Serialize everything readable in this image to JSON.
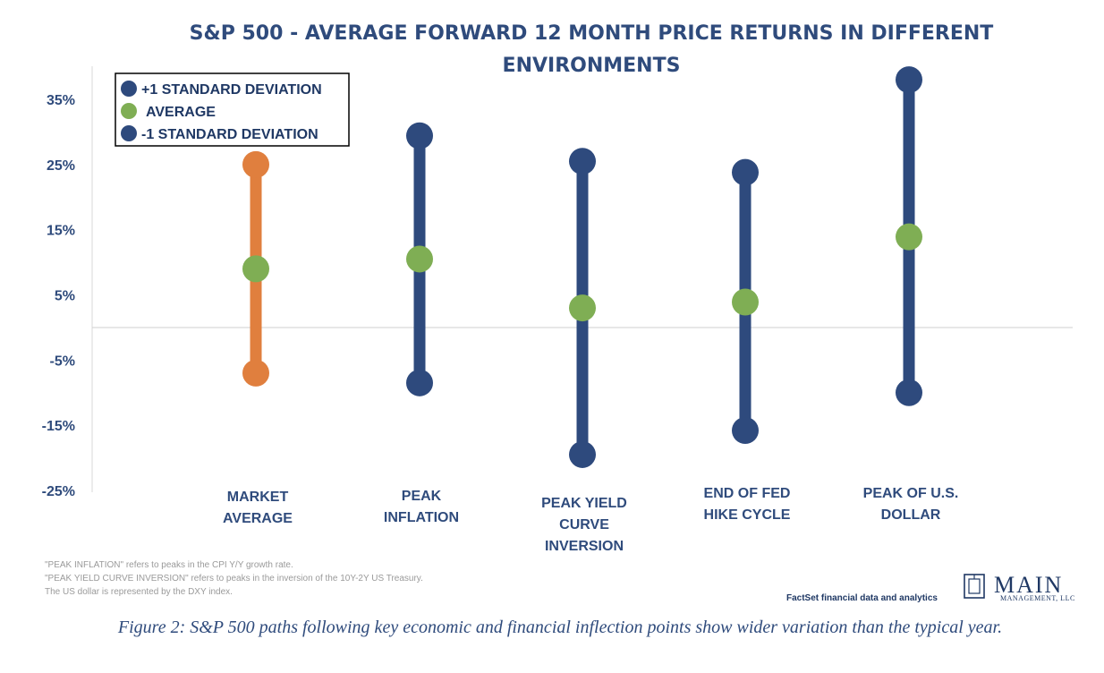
{
  "chart_data": {
    "type": "range",
    "title": [
      "S&P 500 - AVERAGE FORWARD 12 MONTH PRICE RETURNS IN DIFFERENT",
      "ENVIRONMENTS"
    ],
    "yticks": [
      "35%",
      "25%",
      "15%",
      "5%",
      "-5%",
      "-15%",
      "-25%"
    ],
    "ytick_values": [
      35,
      25,
      15,
      5,
      -5,
      -15,
      -25
    ],
    "ylim": [
      -25,
      40
    ],
    "legend": {
      "placement": "top-left",
      "entries": [
        {
          "label": "+1 STANDARD DEVIATION",
          "color": "#2e4a7d"
        },
        {
          "label": "AVERAGE",
          "color": "#7fae54"
        },
        {
          "label": "-1 STANDARD DEVIATION",
          "color": "#2e4a7d"
        }
      ]
    },
    "categories": [
      {
        "label": [
          "MARKET",
          "AVERAGE"
        ],
        "plus_1sd": 25,
        "average": 9,
        "minus_1sd": -7,
        "color": "#e07f3e"
      },
      {
        "label": [
          "PEAK",
          "INFLATION"
        ],
        "plus_1sd": 29.4,
        "average": 10.5,
        "minus_1sd": -8.5,
        "color": "#2e4a7d"
      },
      {
        "label": [
          "PEAK YIELD",
          "CURVE",
          "INVERSION"
        ],
        "plus_1sd": 25.5,
        "average": 3,
        "minus_1sd": -19.5,
        "color": "#2e4a7d"
      },
      {
        "label": [
          "END OF FED",
          "HIKE CYCLE"
        ],
        "plus_1sd": 23.8,
        "average": 3.9,
        "minus_1sd": -15.8,
        "color": "#2e4a7d"
      },
      {
        "label": [
          "PEAK OF U.S.",
          "DOLLAR"
        ],
        "plus_1sd": 38,
        "average": 13.9,
        "minus_1sd": -10,
        "color": "#2e4a7d"
      }
    ],
    "average_color": "#7fae54",
    "zero_line": true
  },
  "notes": [
    "\"PEAK INFLATION\" refers to peaks in the CPI Y/Y growth rate.",
    "\"PEAK YIELD CURVE INVERSION\" refers to peaks in the inversion of the 10Y-2Y US Treasury.",
    "The US dollar is represented by the DXY index."
  ],
  "source": "FactSet financial data and analytics",
  "logo": {
    "main": "MAIN",
    "sub": "MANAGEMENT, LLC"
  },
  "caption": "Figure 2: S&P 500 paths following key economic and financial inflection points show wider variation than the typical year."
}
